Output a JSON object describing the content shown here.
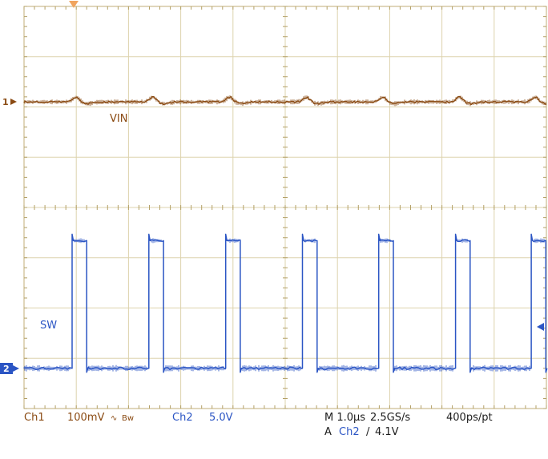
{
  "scope": {
    "colors": {
      "ch1": "#8a4a12",
      "ch2": "#2b55c4",
      "grid": "#ddd3ad",
      "grid_border": "#c0ae77",
      "tick": "#b3a066",
      "trigger_marker": "#f0a45e",
      "text": "#1c1c1c"
    },
    "markers": {
      "ch1_number": "1",
      "ch2_number": "2"
    },
    "trace_labels": {
      "ch1": "VIN",
      "ch2": "SW"
    },
    "readout": {
      "ch1_label": "Ch1",
      "ch1_scale": "100mV",
      "ch1_coupling": "∿",
      "ch1_bw": "Bw",
      "ch2_label": "Ch2",
      "ch2_scale": "5.0V",
      "timebase": "M 1.0µs",
      "sample_rate": "2.5GS/s",
      "resolution": "400ps/pt",
      "trig_a": "A",
      "trig_source": "Ch2",
      "trig_slope": "/",
      "trig_level": "4.1V"
    }
  },
  "chart_data": {
    "type": "line",
    "title": "Oscilloscope capture: VIN ripple (Ch1) and SW switch node (Ch2)",
    "x_axis": {
      "units": "µs",
      "per_division": 1.0,
      "divisions": 10,
      "range": [
        0,
        10
      ]
    },
    "y_axis": {
      "divisions": 8,
      "ch1_per_division": "100mV",
      "ch2_per_division": "5.0V"
    },
    "grid": true,
    "series": [
      {
        "name": "VIN",
        "channel": 1,
        "type": "dc_with_ripple",
        "level_div_from_top": 1.9,
        "ripple_pp_mV": 30,
        "ripple_bump_times_us": [
          0.92,
          2.39,
          3.86,
          5.33,
          6.79,
          8.26,
          9.71
        ]
      },
      {
        "name": "SW",
        "channel": 2,
        "type": "pulse_train",
        "baseline_div_from_top": 7.2,
        "low_V": 0,
        "high_V": 12.7,
        "rising_edge_times_us": [
          0.92,
          2.39,
          3.86,
          5.33,
          6.79,
          8.26,
          9.71
        ],
        "pulse_width_us": 0.28,
        "period_us": 1.47,
        "frequency_kHz": 680
      }
    ],
    "trigger": {
      "source": "Ch2",
      "level_V": 4.1,
      "slope": "rising",
      "position_us": 0.92
    }
  }
}
